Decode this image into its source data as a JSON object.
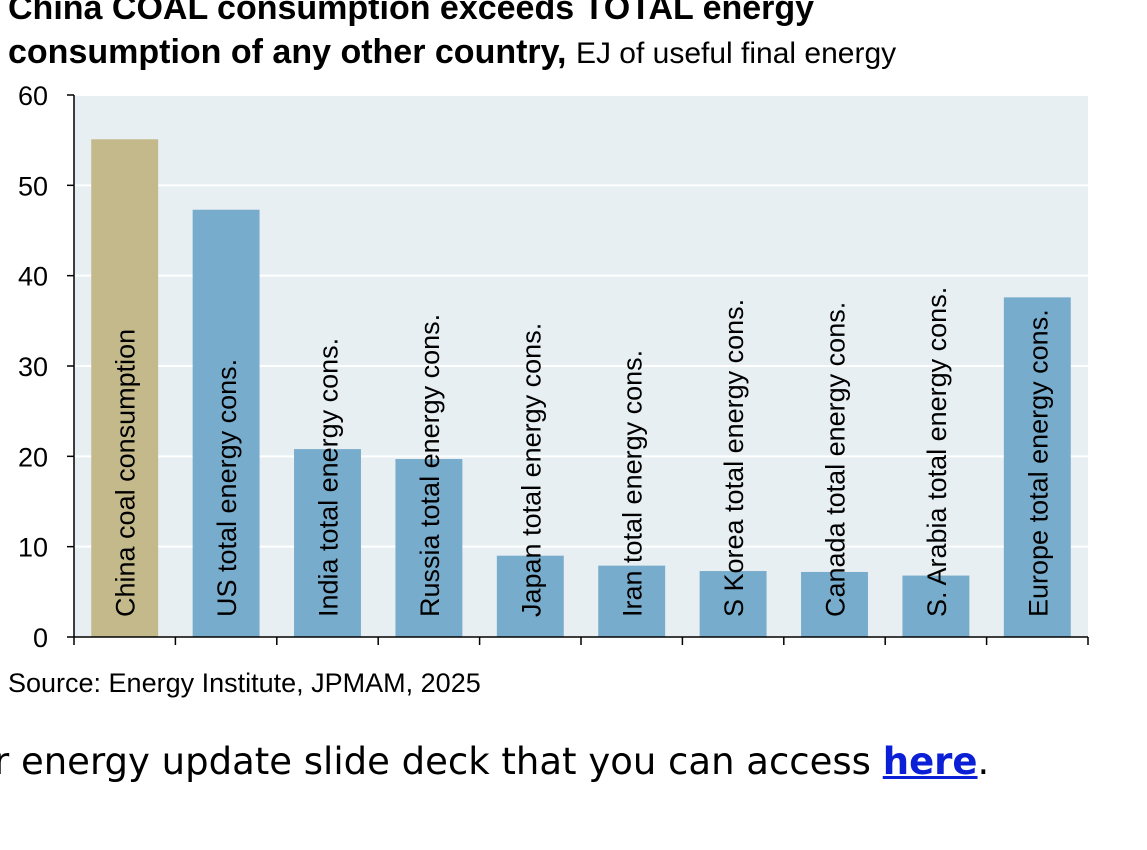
{
  "title": {
    "line1": "China COAL consumption exceeds TOTAL energy",
    "line2": "consumption of any other country,",
    "subtitle": "EJ of useful final energy"
  },
  "source": "Source: Energy Institute, JPMAM, 2025",
  "footer": {
    "text": "r energy update slide deck that you can access ",
    "link": "here",
    "end": "."
  },
  "colors": {
    "plot_bg": "#e8eff3",
    "coal_bar": "#c4b98a",
    "energy_bar": "#78accc"
  },
  "chart_data": {
    "type": "bar",
    "categories": [
      "China coal consumption",
      "US total energy cons.",
      "India total energy cons.",
      "Russia total energy cons.",
      "Japan total energy cons.",
      "Iran total energy cons.",
      "S Korea total energy cons.",
      "Canada total energy cons.",
      "S. Arabia total energy cons.",
      "Europe total energy cons."
    ],
    "values": [
      55.1,
      47.3,
      20.8,
      19.7,
      9.0,
      7.9,
      7.3,
      7.2,
      6.8,
      37.6
    ],
    "ylim": [
      0,
      60
    ],
    "yticks": [
      0,
      10,
      20,
      30,
      40,
      50,
      60
    ],
    "grid": true,
    "xlabel": "",
    "ylabel": ""
  }
}
